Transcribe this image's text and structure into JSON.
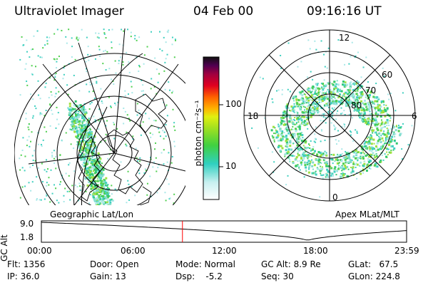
{
  "header": {
    "instrument": "Ultraviolet Imager",
    "date": "04 Feb 00",
    "time": "09:16:16 UT"
  },
  "geo_panel": {
    "label": "Geographic Lat/Lon"
  },
  "apex_panel": {
    "label": "Apex MLat/MLT",
    "mlt_labels": [
      "12",
      "18",
      "6",
      "0"
    ],
    "lat_labels": [
      "60",
      "70",
      "80"
    ]
  },
  "colorbar": {
    "unit_label": "photon cm⁻²s⁻¹",
    "tick_labels": [
      "100",
      "10"
    ]
  },
  "altitude_strip": {
    "axis_label": "GC Alt",
    "y_ticks": [
      "9.0",
      "1.8"
    ],
    "time_ticks": [
      "00:00",
      "06:00",
      "12:00",
      "18:00",
      "23:59"
    ],
    "current_time_hours": 9.27
  },
  "status": {
    "flt": "Flt: 1356",
    "ip": "IP: 36.0",
    "door": "Door: Open",
    "gain": "Gain: 13",
    "mode": "Mode: Normal",
    "dsp": "Dsp:    -5.2",
    "gcalt": "GC Alt: 8.9 Re",
    "seq": "Seq: 30",
    "glat": "GLat:   67.5",
    "glon": "GLon: 224.8"
  }
}
